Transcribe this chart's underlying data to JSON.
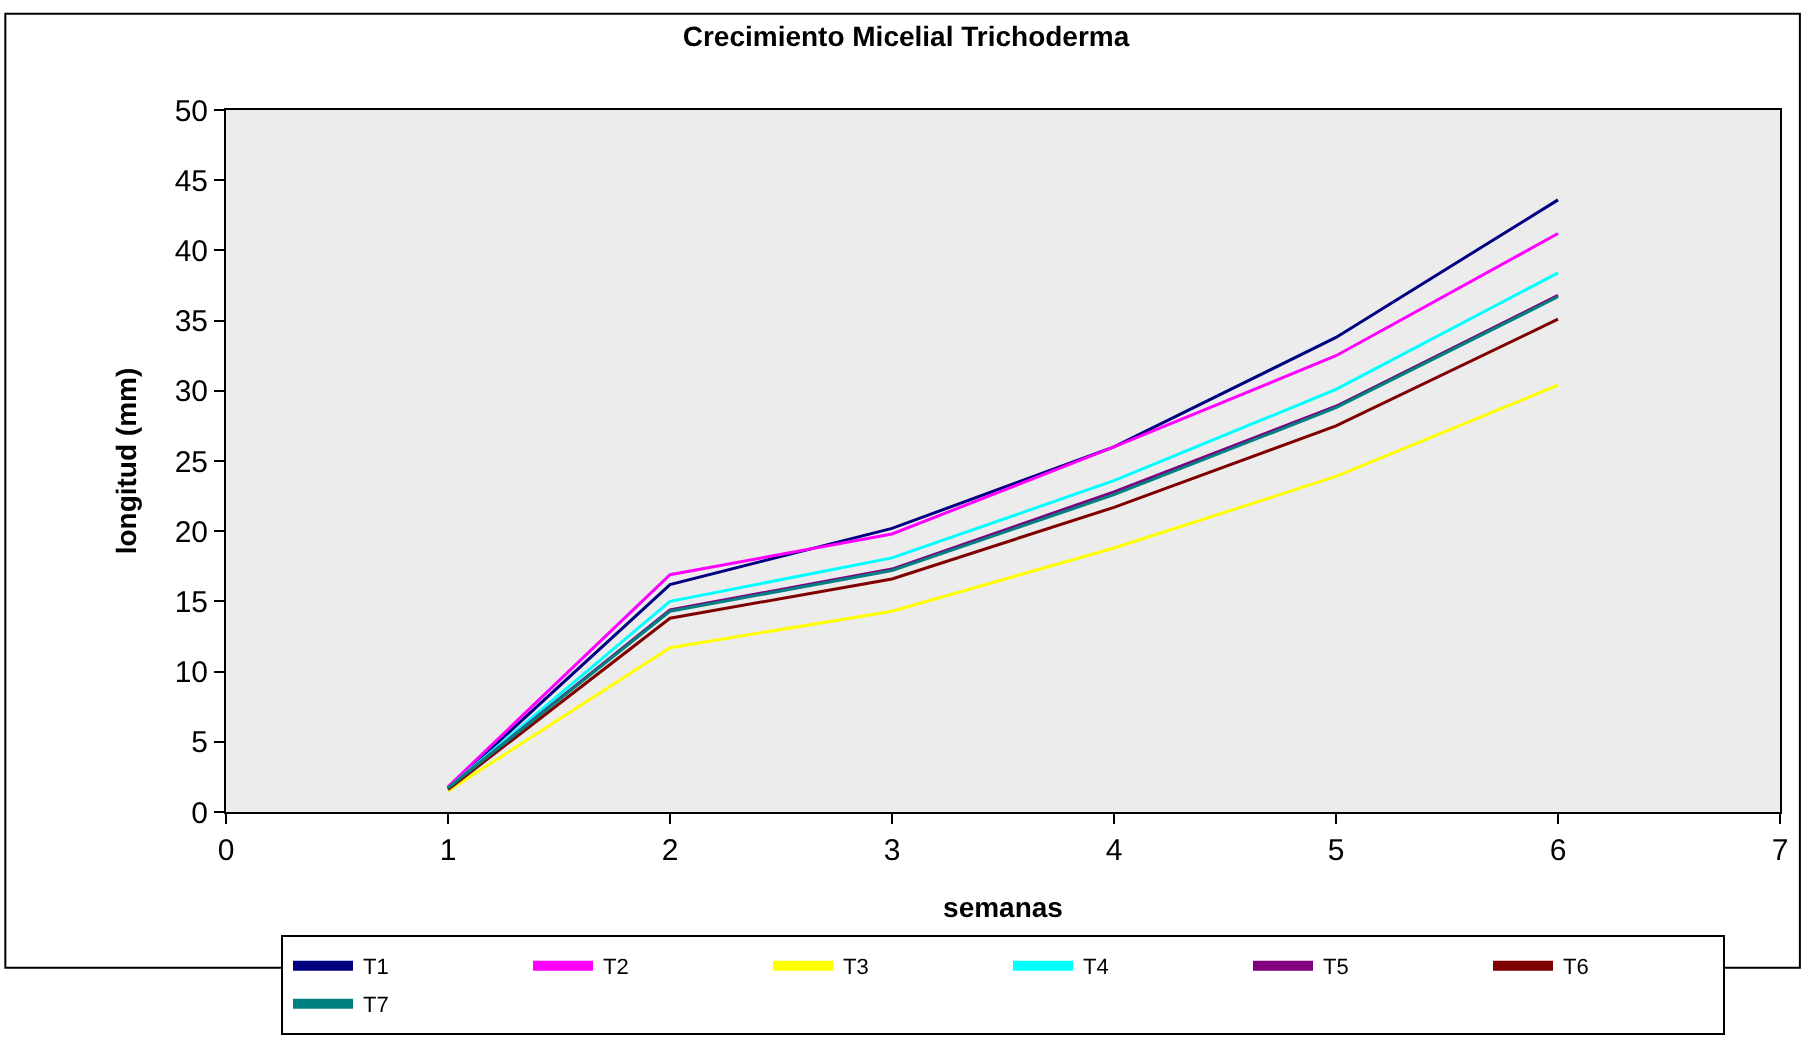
{
  "chart_data": {
    "type": "line",
    "title": "Crecimiento Micelial Trichoderma",
    "xlabel": "semanas",
    "ylabel": "longitud (mm)",
    "x": [
      1,
      2,
      3,
      4,
      5,
      6
    ],
    "series": [
      {
        "name": "T1",
        "color": "#000080",
        "values": [
          1.7,
          16.2,
          20.2,
          26.0,
          33.8,
          43.6
        ]
      },
      {
        "name": "T2",
        "color": "#ff00ff",
        "values": [
          1.8,
          16.9,
          19.8,
          26.0,
          32.5,
          41.2
        ]
      },
      {
        "name": "T3",
        "color": "#ffff00",
        "values": [
          1.5,
          11.7,
          14.3,
          18.8,
          23.9,
          30.4
        ]
      },
      {
        "name": "T4",
        "color": "#00ffff",
        "values": [
          1.7,
          15.0,
          18.1,
          23.6,
          30.1,
          38.4
        ]
      },
      {
        "name": "T5",
        "color": "#800080",
        "values": [
          1.7,
          14.4,
          17.3,
          22.8,
          28.9,
          36.8
        ]
      },
      {
        "name": "T6",
        "color": "#800000",
        "values": [
          1.6,
          13.8,
          16.6,
          21.7,
          27.5,
          35.1
        ]
      },
      {
        "name": "T7",
        "color": "#008080",
        "values": [
          1.7,
          14.3,
          17.2,
          22.6,
          28.8,
          36.7
        ]
      }
    ],
    "xlim": [
      0,
      7
    ],
    "xticks": [
      0,
      1,
      2,
      3,
      4,
      5,
      6,
      7
    ],
    "ylim": [
      0,
      50
    ],
    "yticks": [
      0,
      5,
      10,
      15,
      20,
      25,
      30,
      35,
      40,
      45,
      50
    ],
    "grid": false,
    "legend": "bottom",
    "marker": "none",
    "line_style": "solid"
  }
}
